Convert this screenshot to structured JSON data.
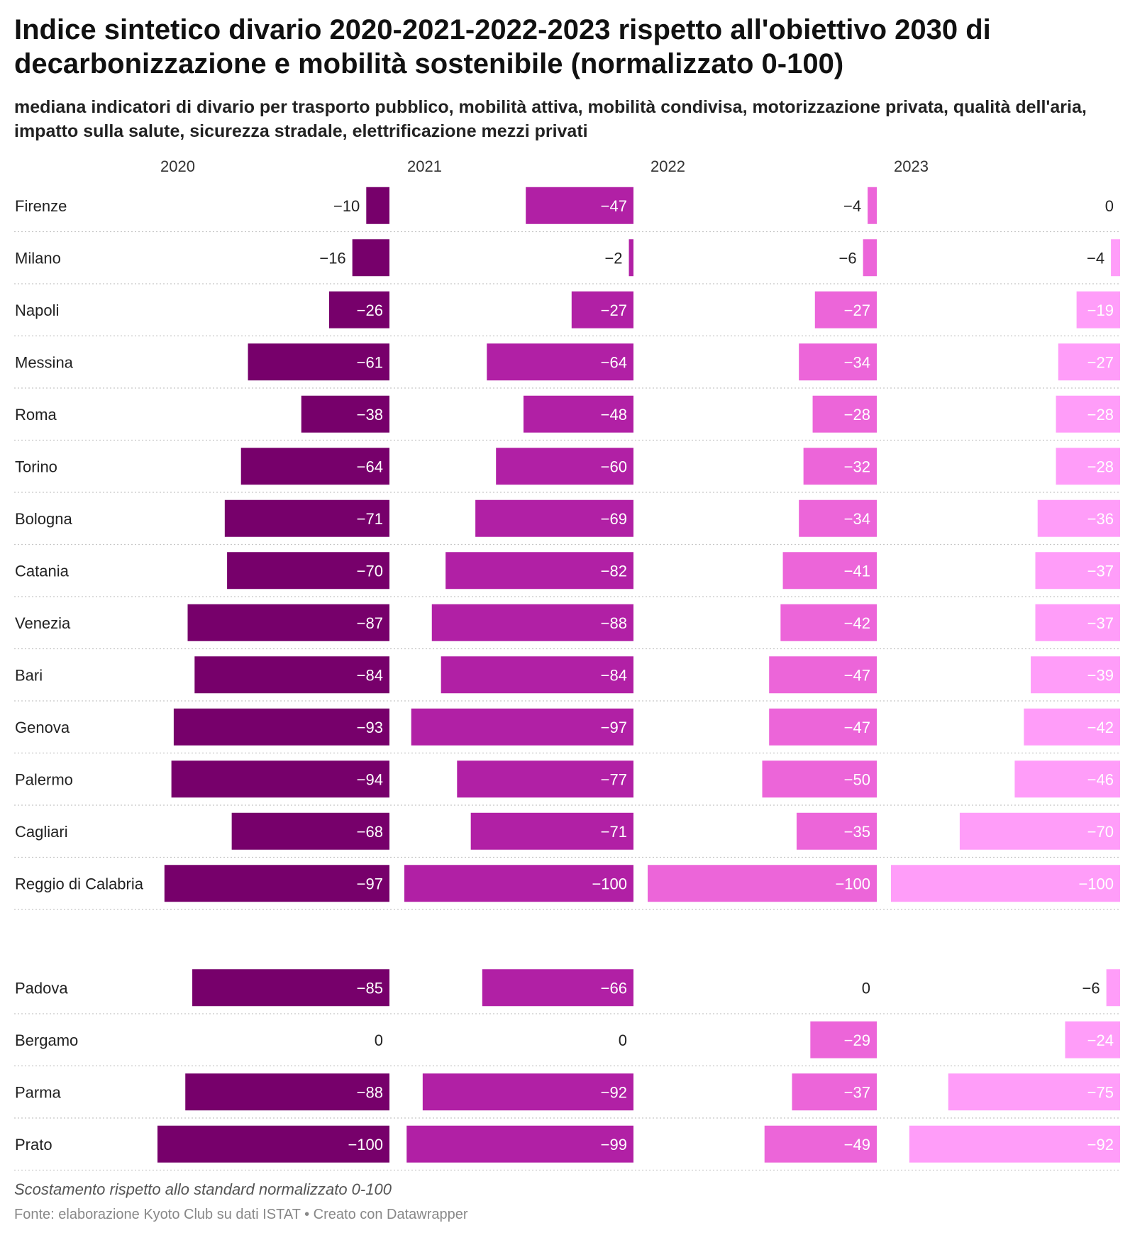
{
  "title": "Indice sintetico divario 2020-2021-2022-2023 rispetto all'obiettivo 2030 di decarbonizzazione e mobilità sostenibile (normalizzato 0-100)",
  "subtitle": "mediana indicatori di divario per trasporto pubblico, mobilità attiva, mobilità condivisa, motorizzazione privata, qualità dell'aria, impatto sulla salute, sicurezza stradale, elettrificazione mezzi privati",
  "notes": "Scostamento rispetto allo standard normalizzato 0-100",
  "source": "Fonte: elaborazione Kyoto Club su dati ISTAT • Creato con Datawrapper",
  "colors": {
    "2020": "#77006b",
    "2021": "#b120a5",
    "2022": "#ec65d9",
    "2023": "#ff9df9",
    "label_inside": "#ffffff",
    "label_outside": "#222222",
    "separator": "#c8c8c8"
  },
  "chart_data": {
    "type": "bar",
    "orientation": "horizontal",
    "xlim": [
      -100,
      0
    ],
    "series": [
      {
        "name": "2020"
      },
      {
        "name": "2021"
      },
      {
        "name": "2022"
      },
      {
        "name": "2023"
      }
    ],
    "groups": [
      {
        "rows": [
          {
            "city": "Firenze",
            "values": [
              -10,
              -47,
              -4,
              0
            ]
          },
          {
            "city": "Milano",
            "values": [
              -16,
              -2,
              -6,
              -4
            ]
          },
          {
            "city": "Napoli",
            "values": [
              -26,
              -27,
              -27,
              -19
            ]
          },
          {
            "city": "Messina",
            "values": [
              -61,
              -64,
              -34,
              -27
            ]
          },
          {
            "city": "Roma",
            "values": [
              -38,
              -48,
              -28,
              -28
            ]
          },
          {
            "city": "Torino",
            "values": [
              -64,
              -60,
              -32,
              -28
            ]
          },
          {
            "city": "Bologna",
            "values": [
              -71,
              -69,
              -34,
              -36
            ]
          },
          {
            "city": "Catania",
            "values": [
              -70,
              -82,
              -41,
              -37
            ]
          },
          {
            "city": "Venezia",
            "values": [
              -87,
              -88,
              -42,
              -37
            ]
          },
          {
            "city": "Bari",
            "values": [
              -84,
              -84,
              -47,
              -39
            ]
          },
          {
            "city": "Genova",
            "values": [
              -93,
              -97,
              -47,
              -42
            ]
          },
          {
            "city": "Palermo",
            "values": [
              -94,
              -77,
              -50,
              -46
            ]
          },
          {
            "city": "Cagliari",
            "values": [
              -68,
              -71,
              -35,
              -70
            ]
          },
          {
            "city": "Reggio di Calabria",
            "values": [
              -97,
              -100,
              -100,
              -100
            ]
          }
        ]
      },
      {
        "rows": [
          {
            "city": "Padova",
            "values": [
              -85,
              -66,
              0,
              -6
            ]
          },
          {
            "city": "Bergamo",
            "values": [
              0,
              0,
              -29,
              -24
            ]
          },
          {
            "city": "Parma",
            "values": [
              -88,
              -92,
              -37,
              -75
            ]
          },
          {
            "city": "Prato",
            "values": [
              -100,
              -99,
              -49,
              -92
            ]
          }
        ]
      }
    ]
  }
}
